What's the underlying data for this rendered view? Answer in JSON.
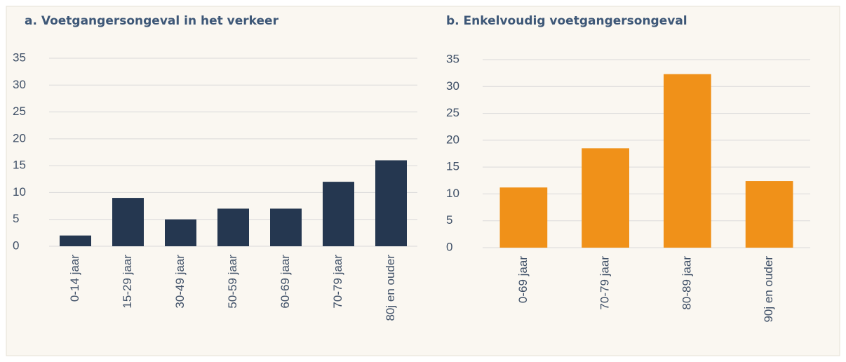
{
  "chart_data": [
    {
      "type": "bar",
      "title": "a. Voetgangersongeval in het verkeer",
      "categories": [
        "0-14 jaar",
        "15-29 jaar",
        "30-49 jaar",
        "50-59 jaar",
        "60-69 jaar",
        "70-79 jaar",
        "80j en ouder"
      ],
      "values": [
        2,
        9,
        5,
        7,
        7,
        12,
        16
      ],
      "color": "#253750",
      "ylim": [
        0,
        35
      ],
      "yticks": [
        0,
        5,
        10,
        15,
        20,
        25,
        30,
        35
      ],
      "grid": true
    },
    {
      "type": "bar",
      "title": "b. Enkelvoudig voetgangersongeval",
      "categories": [
        "0-69 jaar",
        "70-79 jaar",
        "80-89 jaar",
        "90j en ouder"
      ],
      "values": [
        11.2,
        18.5,
        32.3,
        12.4
      ],
      "color": "#f09119",
      "ylim": [
        0,
        35
      ],
      "yticks": [
        0,
        5,
        10,
        15,
        20,
        25,
        30,
        35
      ],
      "grid": true
    }
  ]
}
